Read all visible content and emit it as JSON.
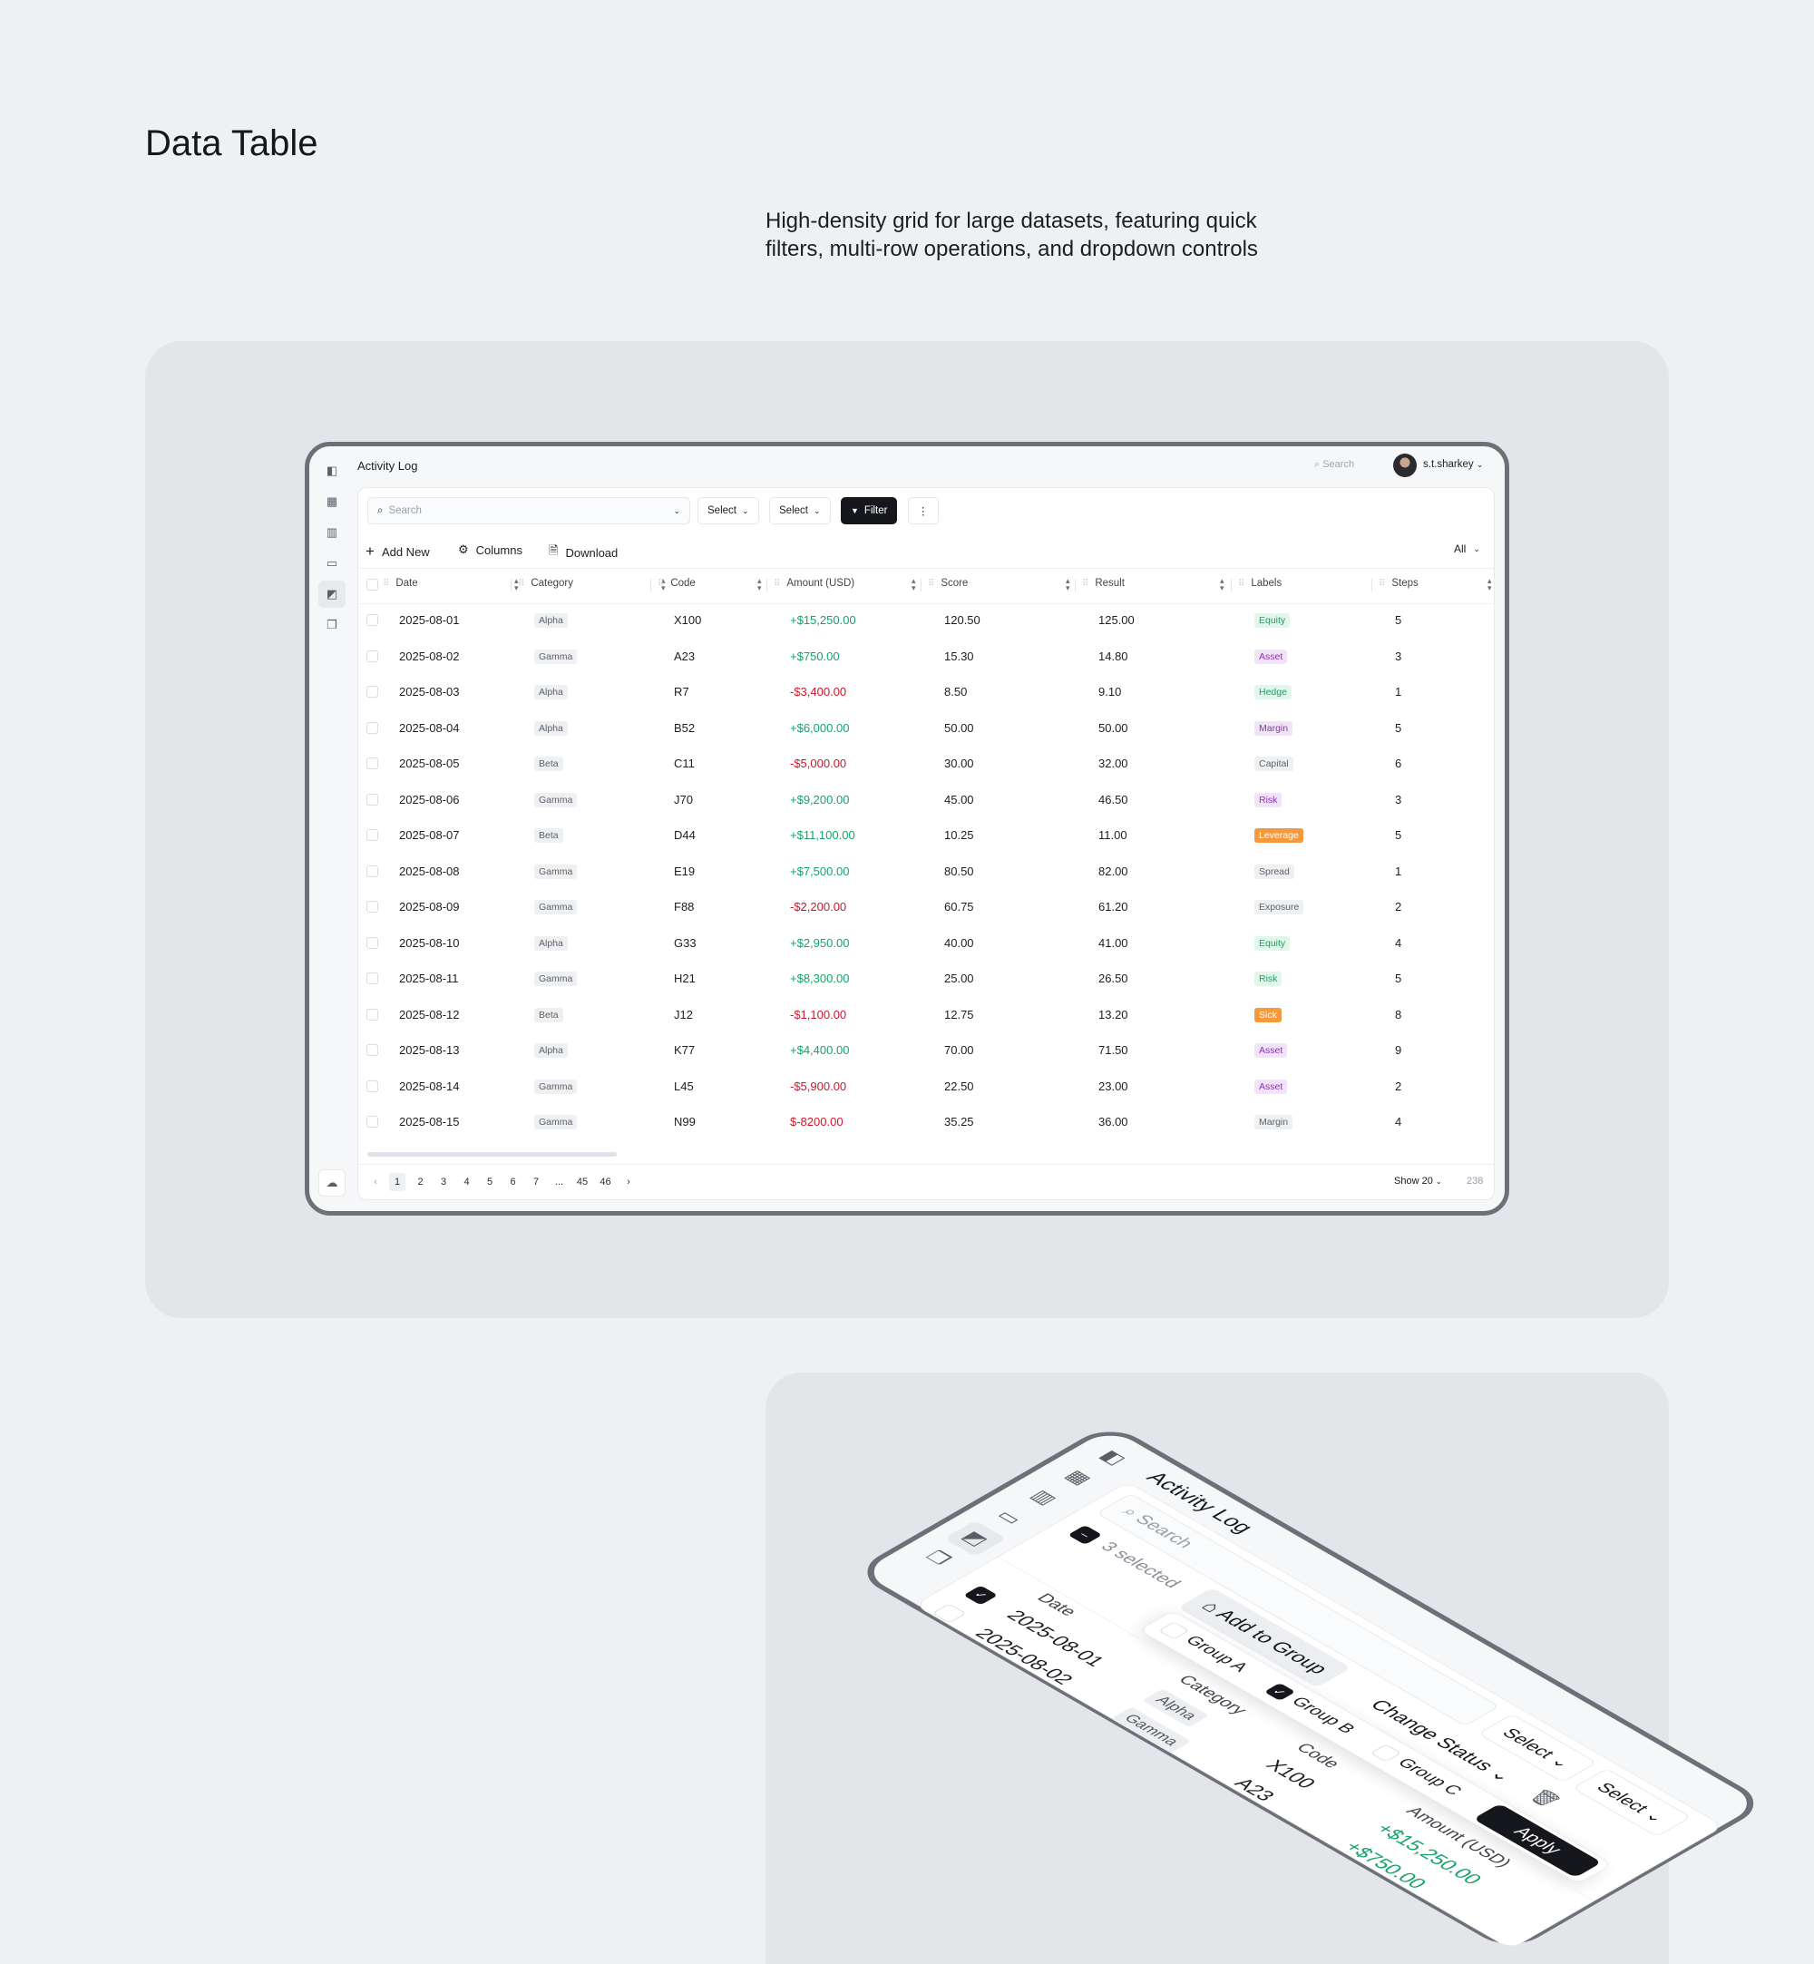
{
  "page": {
    "title": "Data Table",
    "subtitle": "High-density grid for large datasets, featuring quick filters, multi-row operations, and dropdown controls"
  },
  "colors": {
    "positive": "#16a36a",
    "negative": "#d0152b",
    "accent_dark": "#15171c",
    "card_bg": "#e3e5e9"
  },
  "app": {
    "title": "Activity Log",
    "search_placeholder": "Search",
    "user": "s.t.sharkey",
    "sidebar_icons": [
      "panel-toggle-icon",
      "grid-icon",
      "bar-chart-icon",
      "calendar-icon",
      "chart-doc-icon",
      "stack-icon"
    ],
    "sidebar_bottom_icon": "cloud-upload-icon"
  },
  "toolbar": {
    "search_placeholder": "Search",
    "select1": "Select",
    "select2": "Select",
    "filter": "Filter",
    "more": "⋮"
  },
  "actions": {
    "add_new": "Add New",
    "columns": "Columns",
    "download": "Download",
    "view_filter": "All"
  },
  "columns": [
    "Date",
    "Category",
    "Code",
    "Amount (USD)",
    "Score",
    "Result",
    "Labels",
    "Steps"
  ],
  "rows": [
    {
      "date": "2025-08-01",
      "category": "Alpha",
      "code": "X100",
      "amount": "+$15,250.00",
      "sign": "pos",
      "score": "120.50",
      "result": "125.00",
      "label": "Equity",
      "label_style": "green",
      "steps": "5"
    },
    {
      "date": "2025-08-02",
      "category": "Gamma",
      "code": "A23",
      "amount": "+$750.00",
      "sign": "pos",
      "score": "15.30",
      "result": "14.80",
      "label": "Asset",
      "label_style": "purple",
      "steps": "3"
    },
    {
      "date": "2025-08-03",
      "category": "Alpha",
      "code": "R7",
      "amount": "-$3,400.00",
      "sign": "neg",
      "score": "8.50",
      "result": "9.10",
      "label": "Hedge",
      "label_style": "green",
      "steps": "1"
    },
    {
      "date": "2025-08-04",
      "category": "Alpha",
      "code": "B52",
      "amount": "+$6,000.00",
      "sign": "pos",
      "score": "50.00",
      "result": "50.00",
      "label": "Margin",
      "label_style": "purple",
      "steps": "5"
    },
    {
      "date": "2025-08-05",
      "category": "Beta",
      "code": "C11",
      "amount": "-$5,000.00",
      "sign": "neg",
      "score": "30.00",
      "result": "32.00",
      "label": "Capital",
      "label_style": "gray",
      "steps": "6"
    },
    {
      "date": "2025-08-06",
      "category": "Gamma",
      "code": "J70",
      "amount": "+$9,200.00",
      "sign": "pos",
      "score": "45.00",
      "result": "46.50",
      "label": "Risk",
      "label_style": "purple",
      "steps": "3"
    },
    {
      "date": "2025-08-07",
      "category": "Beta",
      "code": "D44",
      "amount": "+$11,100.00",
      "sign": "pos",
      "score": "10.25",
      "result": "11.00",
      "label": "Leverage",
      "label_style": "orange",
      "steps": "5"
    },
    {
      "date": "2025-08-08",
      "category": "Gamma",
      "code": "E19",
      "amount": "+$7,500.00",
      "sign": "pos",
      "score": "80.50",
      "result": "82.00",
      "label": "Spread",
      "label_style": "gray",
      "steps": "1"
    },
    {
      "date": "2025-08-09",
      "category": "Gamma",
      "code": "F88",
      "amount": "-$2,200.00",
      "sign": "neg",
      "score": "60.75",
      "result": "61.20",
      "label": "Exposure",
      "label_style": "gray",
      "steps": "2"
    },
    {
      "date": "2025-08-10",
      "category": "Alpha",
      "code": "G33",
      "amount": "+$2,950.00",
      "sign": "pos",
      "score": "40.00",
      "result": "41.00",
      "label": "Equity",
      "label_style": "green",
      "steps": "4"
    },
    {
      "date": "2025-08-11",
      "category": "Gamma",
      "code": "H21",
      "amount": "+$8,300.00",
      "sign": "pos",
      "score": "25.00",
      "result": "26.50",
      "label": "Risk",
      "label_style": "green",
      "steps": "5"
    },
    {
      "date": "2025-08-12",
      "category": "Beta",
      "code": "J12",
      "amount": "-$1,100.00",
      "sign": "neg",
      "score": "12.75",
      "result": "13.20",
      "label": "Sick",
      "label_style": "orange",
      "steps": "8"
    },
    {
      "date": "2025-08-13",
      "category": "Alpha",
      "code": "K77",
      "amount": "+$4,400.00",
      "sign": "pos",
      "score": "70.00",
      "result": "71.50",
      "label": "Asset",
      "label_style": "purple",
      "steps": "9"
    },
    {
      "date": "2025-08-14",
      "category": "Gamma",
      "code": "L45",
      "amount": "-$5,900.00",
      "sign": "neg",
      "score": "22.50",
      "result": "23.00",
      "label": "Asset",
      "label_style": "purple",
      "steps": "2"
    },
    {
      "date": "2025-08-15",
      "category": "Gamma",
      "code": "N99",
      "amount": "$-8200.00",
      "sign": "neg",
      "score": "35.25",
      "result": "36.00",
      "label": "Margin",
      "label_style": "gray",
      "steps": "4"
    }
  ],
  "pagination": {
    "pages": [
      "1",
      "2",
      "3",
      "4",
      "5",
      "6",
      "7",
      "...",
      "45",
      "46"
    ],
    "current": "1",
    "show": "Show 20",
    "total": "238"
  },
  "bulk": {
    "selected_text": "3 selected",
    "add_to_group": "Add to Group",
    "change_status": "Change Status",
    "groups": [
      "Group A",
      "Group B",
      "Group C"
    ],
    "checked_group": "Group B",
    "apply": "Apply"
  }
}
